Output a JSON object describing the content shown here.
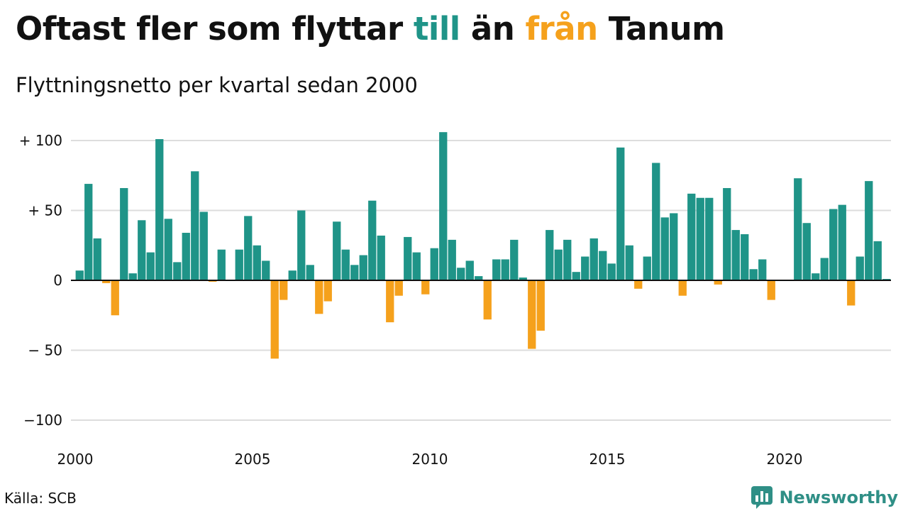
{
  "header": {
    "title_parts": {
      "a": "Oftast fler som flyttar ",
      "b": "till",
      "c": " än ",
      "d": "från",
      "e": " Tanum"
    },
    "subtitle": "Flyttningsnetto per kvartal sedan 2000"
  },
  "colors": {
    "positive": "#1f9488",
    "negative": "#f5a11c",
    "title_till": "#1f9488",
    "title_fran": "#f5a11c"
  },
  "footer": {
    "source": "Källa: SCB",
    "brand": "Newsworthy",
    "brand_icon": "bar-chart-speech-bubble-icon"
  },
  "chart_data": {
    "type": "bar",
    "x_start": "2000 Q1",
    "x_end": "2023 Q1",
    "ylim": [
      -110,
      110
    ],
    "yticks": [
      100,
      50,
      0,
      -50,
      -100
    ],
    "ytick_labels": [
      "+ 100",
      "+  50",
      "0",
      "− 50",
      "−100"
    ],
    "xticks": [
      "2000",
      "2005",
      "2010",
      "2015",
      "2020"
    ],
    "grid": true,
    "legend": "none",
    "categories": [
      "2000 Q1",
      "2000 Q2",
      "2000 Q3",
      "2000 Q4",
      "2001 Q1",
      "2001 Q2",
      "2001 Q3",
      "2001 Q4",
      "2002 Q1",
      "2002 Q2",
      "2002 Q3",
      "2002 Q4",
      "2003 Q1",
      "2003 Q2",
      "2003 Q3",
      "2003 Q4",
      "2004 Q1",
      "2004 Q2",
      "2004 Q3",
      "2004 Q4",
      "2005 Q1",
      "2005 Q2",
      "2005 Q3",
      "2005 Q4",
      "2006 Q1",
      "2006 Q2",
      "2006 Q3",
      "2006 Q4",
      "2007 Q1",
      "2007 Q2",
      "2007 Q3",
      "2007 Q4",
      "2008 Q1",
      "2008 Q2",
      "2008 Q3",
      "2008 Q4",
      "2009 Q1",
      "2009 Q2",
      "2009 Q3",
      "2009 Q4",
      "2010 Q1",
      "2010 Q2",
      "2010 Q3",
      "2010 Q4",
      "2011 Q1",
      "2011 Q2",
      "2011 Q3",
      "2011 Q4",
      "2012 Q1",
      "2012 Q2",
      "2012 Q3",
      "2012 Q4",
      "2013 Q1",
      "2013 Q2",
      "2013 Q3",
      "2013 Q4",
      "2014 Q1",
      "2014 Q2",
      "2014 Q3",
      "2014 Q4",
      "2015 Q1",
      "2015 Q2",
      "2015 Q3",
      "2015 Q4",
      "2016 Q1",
      "2016 Q2",
      "2016 Q3",
      "2016 Q4",
      "2017 Q1",
      "2017 Q2",
      "2017 Q3",
      "2017 Q4",
      "2018 Q1",
      "2018 Q2",
      "2018 Q3",
      "2018 Q4",
      "2019 Q1",
      "2019 Q2",
      "2019 Q3",
      "2019 Q4",
      "2020 Q1",
      "2020 Q2",
      "2020 Q3",
      "2020 Q4",
      "2021 Q1",
      "2021 Q2",
      "2021 Q3",
      "2021 Q4",
      "2022 Q1",
      "2022 Q2",
      "2022 Q3",
      "2022 Q4",
      "2023 Q1"
    ],
    "values": [
      7,
      69,
      30,
      -2,
      -25,
      66,
      5,
      43,
      20,
      101,
      44,
      13,
      34,
      78,
      49,
      -1,
      22,
      0,
      22,
      46,
      25,
      14,
      -56,
      -14,
      7,
      50,
      11,
      -24,
      -15,
      42,
      22,
      11,
      18,
      57,
      32,
      -30,
      -11,
      31,
      20,
      -10,
      23,
      106,
      29,
      9,
      14,
      3,
      -28,
      15,
      15,
      29,
      2,
      -49,
      -36,
      36,
      22,
      29,
      6,
      17,
      30,
      21,
      12,
      95,
      25,
      -6,
      17,
      84,
      45,
      48,
      -11,
      62,
      59,
      59,
      -3,
      66,
      36,
      33,
      8,
      15,
      -14,
      0,
      0,
      73,
      41,
      5,
      16,
      51,
      54,
      -18,
      17,
      71,
      28,
      1,
      0
    ]
  }
}
